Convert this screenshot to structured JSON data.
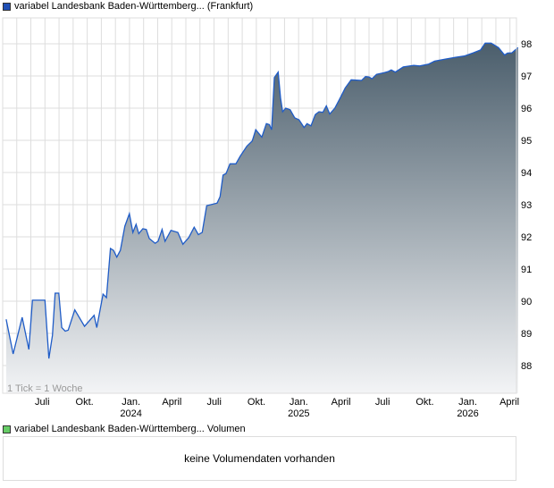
{
  "title": "variabel Landesbank Baden-Württemberg... (Frankfurt)",
  "volume_legend": "variabel Landesbank Baden-Württemberg... Volumen",
  "volume_message": "keine Volumendaten vorhanden",
  "colors": {
    "line": "#1f5cc7",
    "fill_top": "#4b5e6c",
    "fill_bottom": "#f3f4f6",
    "series_square": "#1f4fb5",
    "volume_square": "#66cc66",
    "grid": "#dddddd"
  },
  "chart_data": {
    "type": "area",
    "title": "variabel Landesbank Baden-Württemberg... (Frankfurt)",
    "xlabel": "",
    "ylabel": "",
    "x_unit": "months since April 2023",
    "xlim": [
      0,
      36.6
    ],
    "ylim": [
      87.2,
      98.8
    ],
    "grid": true,
    "note": "1 Tick = 1 Woche",
    "y_ticks": [
      88,
      89,
      90,
      91,
      92,
      93,
      94,
      95,
      96,
      97,
      98
    ],
    "x_ticks": [
      {
        "m": 3,
        "label": "Juli",
        "year": ""
      },
      {
        "m": 6,
        "label": "Okt.",
        "year": ""
      },
      {
        "m": 9.3,
        "label": "Jan.",
        "year": "2024"
      },
      {
        "m": 12.2,
        "label": "April",
        "year": ""
      },
      {
        "m": 15.2,
        "label": "Juli",
        "year": ""
      },
      {
        "m": 18.2,
        "label": "Okt.",
        "year": ""
      },
      {
        "m": 21.2,
        "label": "Jan.",
        "year": "2025"
      },
      {
        "m": 24.2,
        "label": "April",
        "year": ""
      },
      {
        "m": 27.15,
        "label": "Juli",
        "year": ""
      },
      {
        "m": 30.15,
        "label": "Okt.",
        "year": ""
      },
      {
        "m": 33.2,
        "label": "Jan.",
        "year": "2026"
      },
      {
        "m": 36.15,
        "label": "April",
        "year": ""
      }
    ],
    "series": [
      {
        "name": "variabel Landesbank Baden-Württemberg... (Frankfurt)",
        "points": [
          [
            0.25,
            89.44
          ],
          [
            0.74,
            88.36
          ],
          [
            1.38,
            89.5
          ],
          [
            1.86,
            88.5
          ],
          [
            2.11,
            90.03
          ],
          [
            3.0,
            90.03
          ],
          [
            3.28,
            88.22
          ],
          [
            3.53,
            88.94
          ],
          [
            3.72,
            90.25
          ],
          [
            3.98,
            90.25
          ],
          [
            4.19,
            89.18
          ],
          [
            4.44,
            89.07
          ],
          [
            4.65,
            89.1
          ],
          [
            5.12,
            89.73
          ],
          [
            5.81,
            89.22
          ],
          [
            6.49,
            89.56
          ],
          [
            6.68,
            89.18
          ],
          [
            7.12,
            90.22
          ],
          [
            7.36,
            90.11
          ],
          [
            7.65,
            91.64
          ],
          [
            7.86,
            91.58
          ],
          [
            8.1,
            91.37
          ],
          [
            8.35,
            91.58
          ],
          [
            8.67,
            92.33
          ],
          [
            8.99,
            92.72
          ],
          [
            9.24,
            92.14
          ],
          [
            9.47,
            92.39
          ],
          [
            9.66,
            92.1
          ],
          [
            9.94,
            92.25
          ],
          [
            10.19,
            92.23
          ],
          [
            10.4,
            91.95
          ],
          [
            10.82,
            91.8
          ],
          [
            11.03,
            91.86
          ],
          [
            11.31,
            92.23
          ],
          [
            11.52,
            91.86
          ],
          [
            11.94,
            92.2
          ],
          [
            12.43,
            92.14
          ],
          [
            12.79,
            91.77
          ],
          [
            13.21,
            91.98
          ],
          [
            13.59,
            92.3
          ],
          [
            13.89,
            92.07
          ],
          [
            14.16,
            92.14
          ],
          [
            14.48,
            92.97
          ],
          [
            15.22,
            93.05
          ],
          [
            15.43,
            93.25
          ],
          [
            15.64,
            93.92
          ],
          [
            15.85,
            93.97
          ],
          [
            16.13,
            94.27
          ],
          [
            16.55,
            94.27
          ],
          [
            16.85,
            94.5
          ],
          [
            17.33,
            94.82
          ],
          [
            17.71,
            94.98
          ],
          [
            17.96,
            95.33
          ],
          [
            18.39,
            95.1
          ],
          [
            18.71,
            95.52
          ],
          [
            18.92,
            95.49
          ],
          [
            19.09,
            95.33
          ],
          [
            19.28,
            96.95
          ],
          [
            19.55,
            97.12
          ],
          [
            19.72,
            96.31
          ],
          [
            19.87,
            95.89
          ],
          [
            20.08,
            96.0
          ],
          [
            20.4,
            95.95
          ],
          [
            20.72,
            95.7
          ],
          [
            21.03,
            95.64
          ],
          [
            21.39,
            95.4
          ],
          [
            21.6,
            95.52
          ],
          [
            21.88,
            95.45
          ],
          [
            22.19,
            95.8
          ],
          [
            22.45,
            95.89
          ],
          [
            22.72,
            95.87
          ],
          [
            22.97,
            96.07
          ],
          [
            23.21,
            95.82
          ],
          [
            23.57,
            96.0
          ],
          [
            23.89,
            96.26
          ],
          [
            24.31,
            96.63
          ],
          [
            24.73,
            96.88
          ],
          [
            25.47,
            96.86
          ],
          [
            25.75,
            96.98
          ],
          [
            26.0,
            96.97
          ],
          [
            26.21,
            96.91
          ],
          [
            26.53,
            97.05
          ],
          [
            27.06,
            97.1
          ],
          [
            27.37,
            97.14
          ],
          [
            27.58,
            97.19
          ],
          [
            27.86,
            97.12
          ],
          [
            28.43,
            97.28
          ],
          [
            29.17,
            97.33
          ],
          [
            29.59,
            97.31
          ],
          [
            30.23,
            97.37
          ],
          [
            30.65,
            97.46
          ],
          [
            31.5,
            97.53
          ],
          [
            32.13,
            97.58
          ],
          [
            32.76,
            97.62
          ],
          [
            33.4,
            97.72
          ],
          [
            33.92,
            97.81
          ],
          [
            34.24,
            98.02
          ],
          [
            34.67,
            98.02
          ],
          [
            35.19,
            97.88
          ],
          [
            35.62,
            97.65
          ],
          [
            35.83,
            97.71
          ],
          [
            36.14,
            97.72
          ],
          [
            36.57,
            97.88
          ]
        ]
      }
    ]
  }
}
